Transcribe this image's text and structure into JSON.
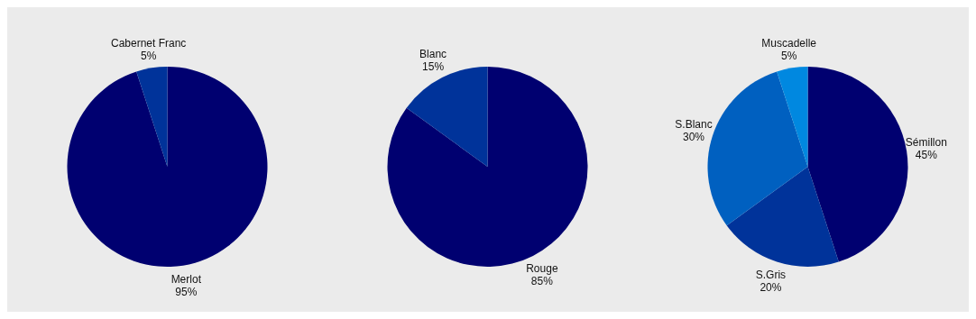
{
  "chart_data": [
    {
      "type": "pie",
      "categories": [
        "Merlot",
        "Cabernet Franc"
      ],
      "values": [
        95,
        5
      ],
      "value_labels": [
        "95%",
        "5%"
      ],
      "colors": [
        "#000070",
        "#00339a"
      ]
    },
    {
      "type": "pie",
      "categories": [
        "Rouge",
        "Blanc"
      ],
      "values": [
        85,
        15
      ],
      "value_labels": [
        "85%",
        "15%"
      ],
      "colors": [
        "#000070",
        "#00339a"
      ]
    },
    {
      "type": "pie",
      "categories": [
        "Sémillon",
        "S.Gris",
        "S.Blanc",
        "Muscadelle"
      ],
      "values": [
        45,
        20,
        30,
        5
      ],
      "value_labels": [
        "45%",
        "20%",
        "30%",
        "5%"
      ],
      "colors": [
        "#000070",
        "#00339a",
        "#0060c0",
        "#0088e0"
      ]
    }
  ]
}
